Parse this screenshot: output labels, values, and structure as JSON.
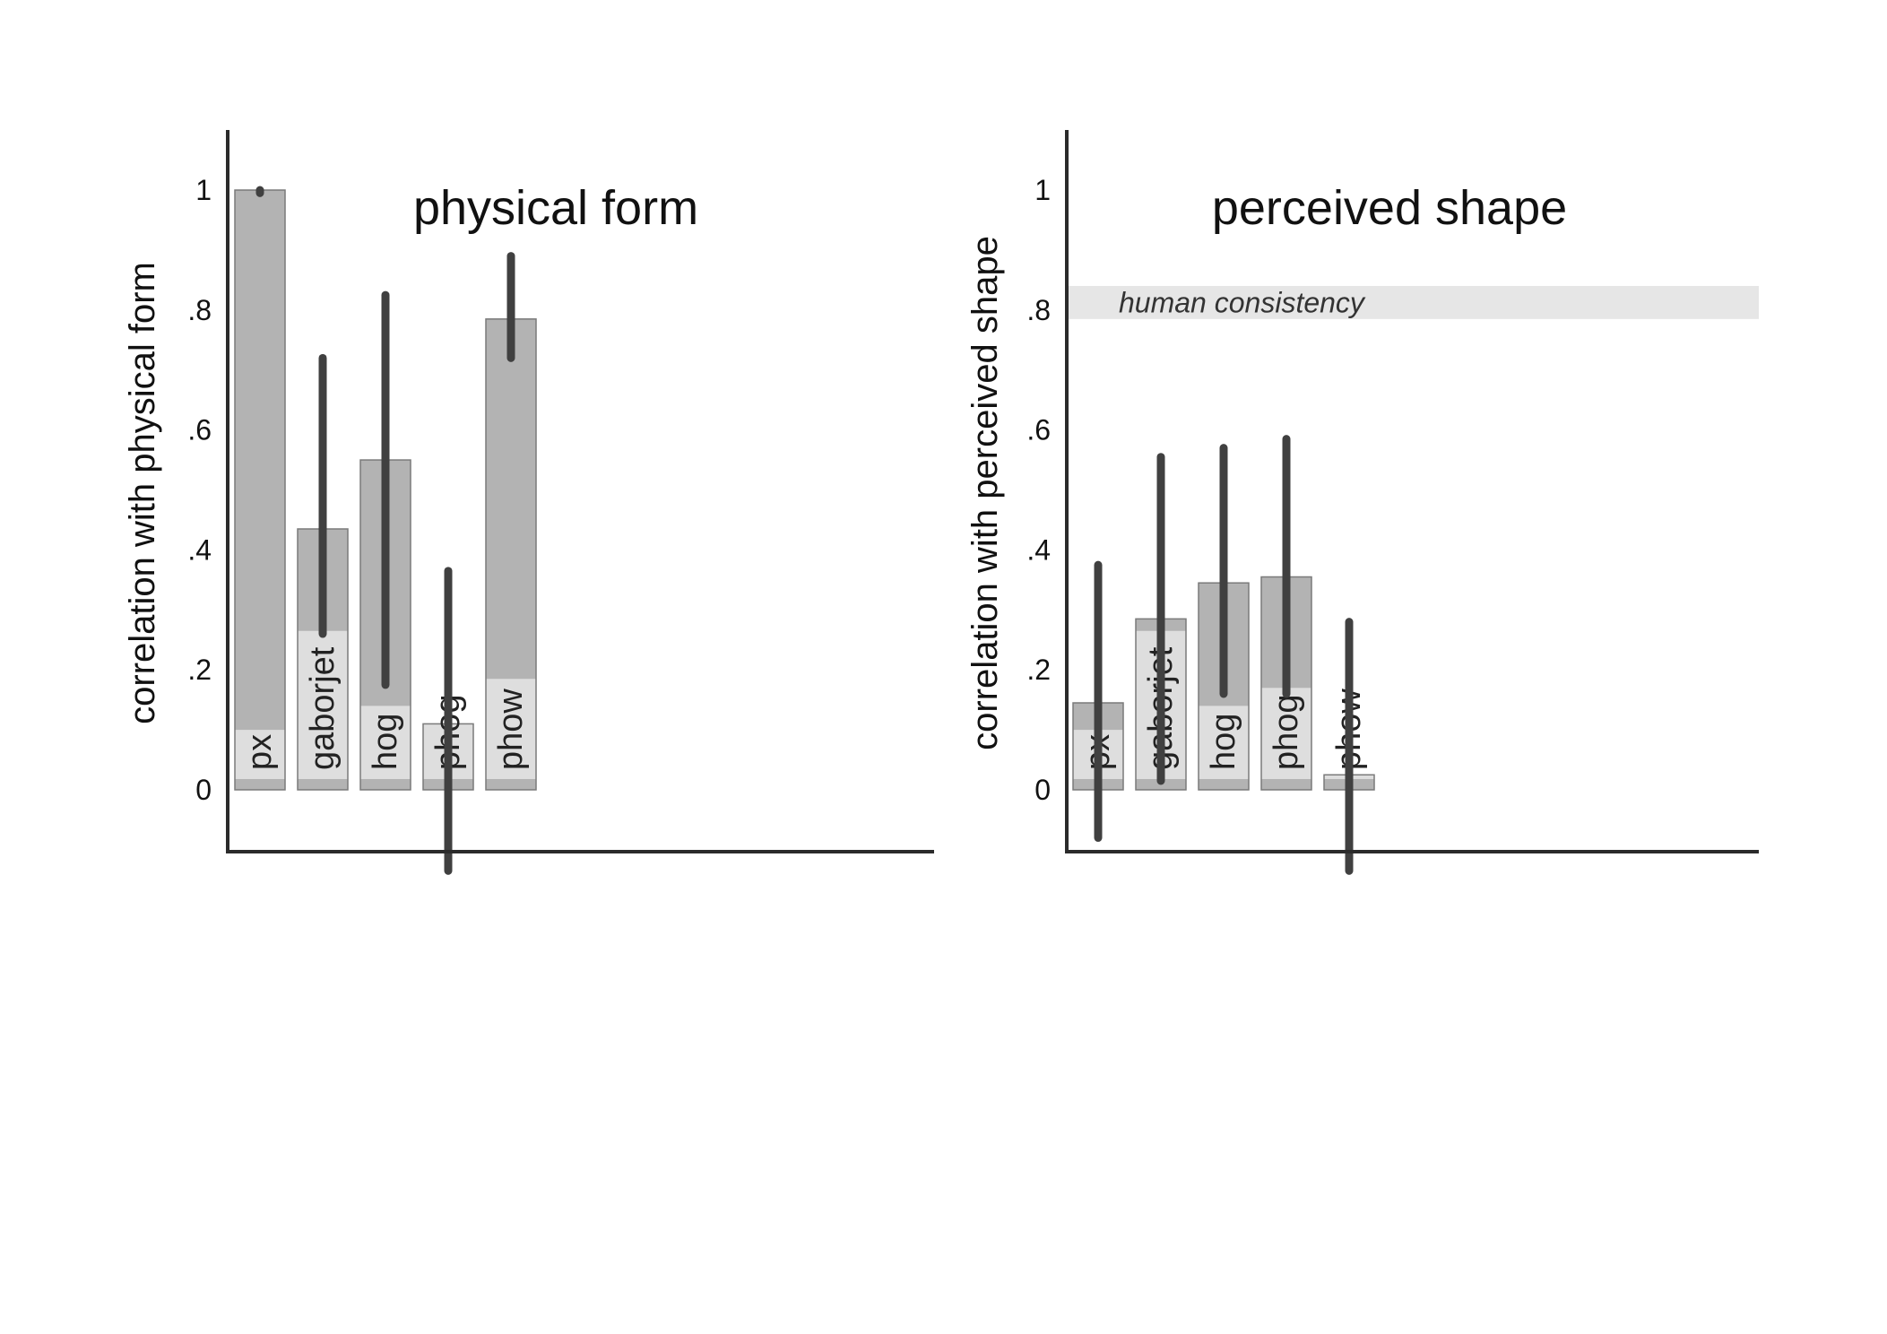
{
  "chart_data": [
    {
      "type": "bar",
      "title": "physical form",
      "ylabel": "correlation with physical form",
      "ylim": [
        -0.1,
        1.1
      ],
      "yticks": [
        0,
        0.2,
        0.4,
        0.6,
        0.8,
        1
      ],
      "ytick_labels": [
        "0",
        ".2",
        ".4",
        ".6",
        ".8",
        "1"
      ],
      "categories": [
        "px",
        "gaborjet",
        "hog",
        "phog",
        "phow"
      ],
      "values": [
        1.0,
        0.435,
        0.55,
        0.11,
        0.785
      ],
      "inner_values": [
        0.1,
        0.265,
        0.14,
        0.11,
        0.185
      ],
      "error_low": [
        0.995,
        0.26,
        0.175,
        -0.135,
        0.72
      ],
      "error_high": [
        1.0,
        0.72,
        0.825,
        0.365,
        0.89
      ],
      "reference_band": null
    },
    {
      "type": "bar",
      "title": "perceived shape",
      "ylabel": "correlation with perceived shape",
      "ylim": [
        -0.1,
        1.1
      ],
      "yticks": [
        0,
        0.2,
        0.4,
        0.6,
        0.8,
        1
      ],
      "ytick_labels": [
        "0",
        ".2",
        ".4",
        ".6",
        ".8",
        "1"
      ],
      "categories": [
        "px",
        "gaborjet",
        "hog",
        "phog",
        "phow"
      ],
      "values": [
        0.145,
        0.285,
        0.345,
        0.355,
        0.025
      ],
      "inner_values": [
        0.1,
        0.265,
        0.14,
        0.17,
        0.025
      ],
      "error_low": [
        -0.08,
        0.015,
        0.16,
        0.16,
        -0.135
      ],
      "error_high": [
        0.375,
        0.555,
        0.57,
        0.585,
        0.28
      ],
      "reference_band": {
        "label": "human consistency",
        "low": 0.785,
        "high": 0.84
      }
    }
  ],
  "colors": {
    "bar_outer": "#b3b3b3",
    "bar_inner": "#dedede",
    "bar_edge": "#7a7a7a",
    "error_bar": "#404040",
    "axis": "#2b2b2b",
    "band": "#e6e6e6",
    "text": "#111111"
  }
}
